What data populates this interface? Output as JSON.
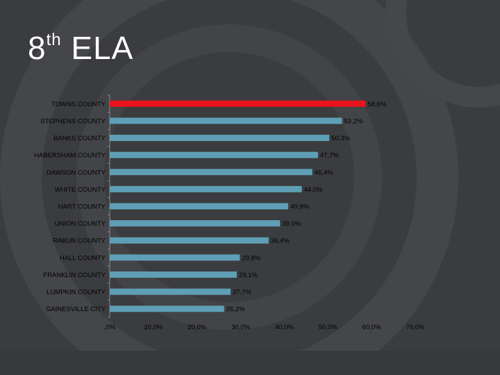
{
  "slide": {
    "title_main": "8",
    "title_sup": "th",
    "title_rest": " ELA"
  },
  "colors": {
    "background": "#3b3c3f",
    "highlight_bar": "#e8141b",
    "bar": "#5f9fb5",
    "axis": "#8a8a8a"
  },
  "chart_data": {
    "type": "bar",
    "orientation": "horizontal",
    "categories": [
      "TOWNS COUNTY",
      "STEPHENS COUNTY",
      "BANKS COUNTY",
      "HABERSHAM COUNTY",
      "DAWSON COUNTY",
      "WHITE COUNTY",
      "HART COUNTY",
      "UNION COUNTY",
      "RABUN COUNTY",
      "HALL COUNTY",
      "FRANKLIN COUNTY",
      "LUMPKIN COUNTY",
      "GAINESVILLE CITY"
    ],
    "values": [
      58.6,
      53.2,
      50.3,
      47.7,
      46.4,
      44.0,
      40.9,
      39.0,
      36.4,
      29.8,
      29.1,
      27.7,
      26.2
    ],
    "value_labels": [
      "58,6%",
      "53,2%",
      "50,3%",
      "47,7%",
      "46,4%",
      "44,0%",
      "40,9%",
      "39,0%",
      "36,4%",
      "29,8%",
      "29,1%",
      "27,7%",
      "26,2%"
    ],
    "highlight_index": 0,
    "xlim": [
      0,
      70
    ],
    "xticks": [
      0,
      10,
      20,
      30,
      40,
      50,
      60,
      70
    ],
    "xtick_labels": [
      ",0%",
      "10,0%",
      "20,0%",
      "30,0%",
      "40,0%",
      "50,0%",
      "60,0%",
      "70,0%"
    ],
    "grid": false,
    "legend": "none"
  }
}
